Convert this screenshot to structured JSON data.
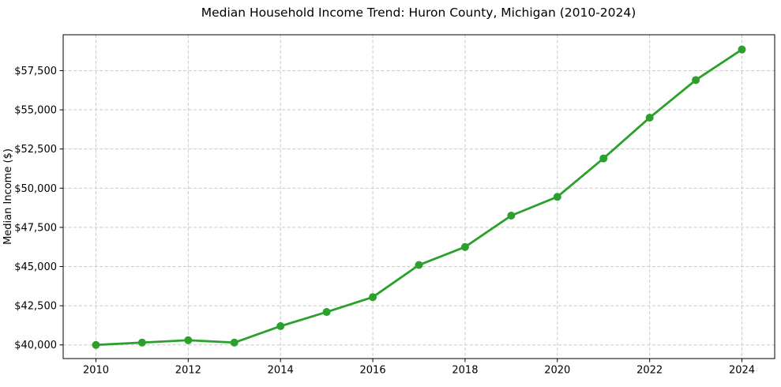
{
  "chart_data": {
    "type": "line",
    "title": "Median Household Income Trend: Huron County, Michigan (2010-2024)",
    "xlabel": "",
    "ylabel": "Median Income ($)",
    "x": [
      2010,
      2011,
      2012,
      2013,
      2014,
      2015,
      2016,
      2017,
      2018,
      2019,
      2020,
      2021,
      2022,
      2023,
      2024
    ],
    "values": [
      40000,
      40150,
      40300,
      40150,
      41200,
      42100,
      43050,
      45100,
      46250,
      48250,
      49450,
      51900,
      54500,
      56900,
      58850
    ],
    "xticks": {
      "values": [
        2010,
        2012,
        2014,
        2016,
        2018,
        2020,
        2022,
        2024
      ],
      "labels": [
        "2010",
        "2012",
        "2014",
        "2016",
        "2018",
        "2020",
        "2022",
        "2024"
      ]
    },
    "yticks": {
      "values": [
        40000,
        42500,
        45000,
        47500,
        50000,
        52500,
        55000,
        57500
      ],
      "labels": [
        "$40,000",
        "$42,500",
        "$45,000",
        "$47,500",
        "$50,000",
        "$52,500",
        "$55,000",
        "$57,500"
      ]
    },
    "xlim": [
      2009.29,
      2024.71
    ],
    "ylim": [
      39130,
      59790
    ],
    "grid": true,
    "legend": "none",
    "line_color": "#2ca02c",
    "marker_color": "#2ca02c",
    "grid_color": "#c9c9c9",
    "axis_color": "#000000",
    "background_color": "#ffffff"
  }
}
